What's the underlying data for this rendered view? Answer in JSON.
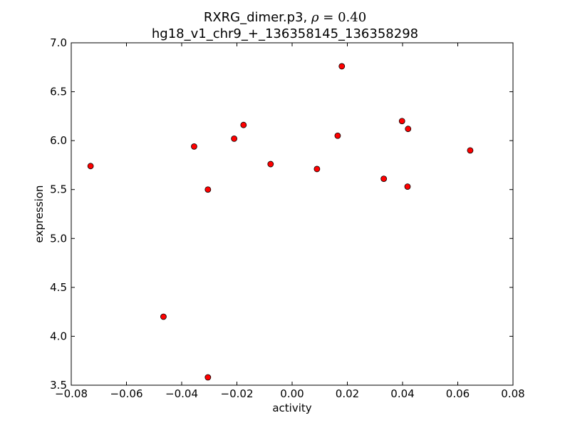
{
  "chart_data": {
    "type": "scatter",
    "title_line1": "RXRG_dimer.p3, ",
    "title_rho": "ρ",
    "title_eq": " = 0.40",
    "title_line2": "hg18_v1_chr9_+_136358145_136358298",
    "xlabel": "activity",
    "ylabel": "expression",
    "xlim": [
      -0.08,
      0.08
    ],
    "ylim": [
      3.5,
      7.0
    ],
    "xticks": [
      -0.08,
      -0.06,
      -0.04,
      -0.02,
      0.0,
      0.02,
      0.04,
      0.06,
      0.08
    ],
    "xtick_labels": [
      "−0.08",
      "−0.06",
      "−0.04",
      "−0.02",
      "0.00",
      "0.02",
      "0.04",
      "0.06",
      "0.08"
    ],
    "yticks": [
      3.5,
      4.0,
      4.5,
      5.0,
      5.5,
      6.0,
      6.5,
      7.0
    ],
    "ytick_labels": [
      "3.5",
      "4.0",
      "4.5",
      "5.0",
      "5.5",
      "6.0",
      "6.5",
      "7.0"
    ],
    "grid": false,
    "marker_color": "#ff0000",
    "marker_edge": "#000000",
    "points": [
      {
        "x": -0.073,
        "y": 5.74
      },
      {
        "x": -0.0466,
        "y": 4.2
      },
      {
        "x": -0.0355,
        "y": 5.94
      },
      {
        "x": -0.0305,
        "y": 5.5
      },
      {
        "x": -0.0305,
        "y": 3.58
      },
      {
        "x": -0.021,
        "y": 6.02
      },
      {
        "x": -0.0176,
        "y": 6.16
      },
      {
        "x": -0.0078,
        "y": 5.76
      },
      {
        "x": 0.009,
        "y": 5.71
      },
      {
        "x": 0.0165,
        "y": 6.05
      },
      {
        "x": 0.018,
        "y": 6.76
      },
      {
        "x": 0.0332,
        "y": 5.61
      },
      {
        "x": 0.0398,
        "y": 6.2
      },
      {
        "x": 0.042,
        "y": 6.12
      },
      {
        "x": 0.0418,
        "y": 5.53
      },
      {
        "x": 0.0645,
        "y": 5.9
      }
    ]
  }
}
